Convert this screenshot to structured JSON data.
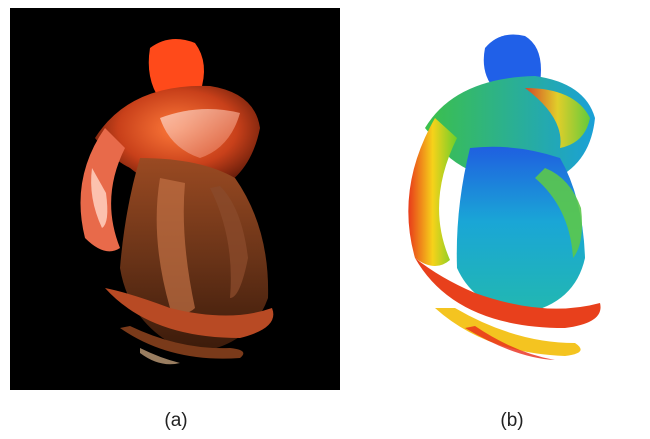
{
  "figure": {
    "panels": [
      {
        "caption": "(a)",
        "background": "#000000"
      },
      {
        "caption": "(b)",
        "background": "#ffffff"
      }
    ]
  }
}
